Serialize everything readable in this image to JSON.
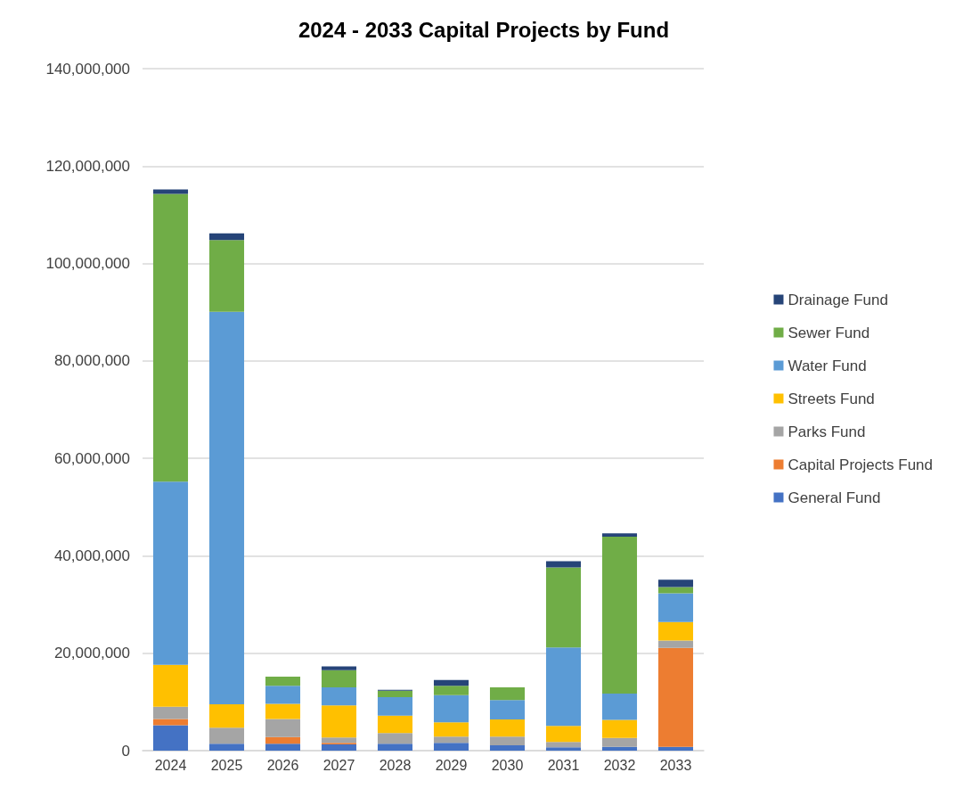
{
  "chart_data": {
    "type": "bar",
    "title": "2024 - 2033 Capital Projects by Fund",
    "stacked": true,
    "categories": [
      "2024",
      "2025",
      "2026",
      "2027",
      "2028",
      "2029",
      "2030",
      "2031",
      "2032",
      "2033"
    ],
    "series": [
      {
        "name": "General Fund",
        "color": "#4472c4",
        "values": [
          5200000,
          1400000,
          1400000,
          1300000,
          1400000,
          1600000,
          1100000,
          700000,
          800000,
          800000
        ]
      },
      {
        "name": "Capital Projects Fund",
        "color": "#ed7d31",
        "values": [
          1300000,
          0,
          1400000,
          300000,
          0,
          0,
          0,
          0,
          0,
          20300000
        ]
      },
      {
        "name": "Parks Fund",
        "color": "#a5a5a5",
        "values": [
          2500000,
          3300000,
          3700000,
          1100000,
          2200000,
          1300000,
          1800000,
          1100000,
          1800000,
          1500000
        ]
      },
      {
        "name": "Streets Fund",
        "color": "#ffc000",
        "values": [
          8600000,
          4800000,
          3100000,
          6600000,
          3600000,
          2900000,
          3500000,
          3300000,
          3700000,
          3800000
        ]
      },
      {
        "name": "Water Fund",
        "color": "#5b9bd5",
        "values": [
          37600000,
          80600000,
          3700000,
          3700000,
          3800000,
          5600000,
          4000000,
          16100000,
          5400000,
          5900000
        ]
      },
      {
        "name": "Sewer Fund",
        "color": "#70ad47",
        "values": [
          59100000,
          14700000,
          1900000,
          3500000,
          1300000,
          1900000,
          2600000,
          16400000,
          32200000,
          1300000
        ]
      },
      {
        "name": "Drainage Fund",
        "color": "#264478",
        "values": [
          900000,
          1400000,
          0,
          800000,
          200000,
          1200000,
          0,
          1300000,
          700000,
          1500000
        ]
      }
    ],
    "ylim": [
      0,
      140000000
    ],
    "yticks": [
      0,
      {
        "value": 20000000,
        "label": "20,000,000"
      },
      {
        "value": 40000000,
        "label": "40,000,000"
      },
      {
        "value": 60000000,
        "label": "60,000,000"
      },
      {
        "value": 80000000,
        "label": "80,000,000"
      },
      {
        "value": 100000000,
        "label": "100,000,000"
      },
      {
        "value": 120000000,
        "label": "120,000,000"
      },
      {
        "value": 140000000,
        "label": "140,000,000"
      }
    ],
    "grid": "y",
    "legend": "right"
  }
}
